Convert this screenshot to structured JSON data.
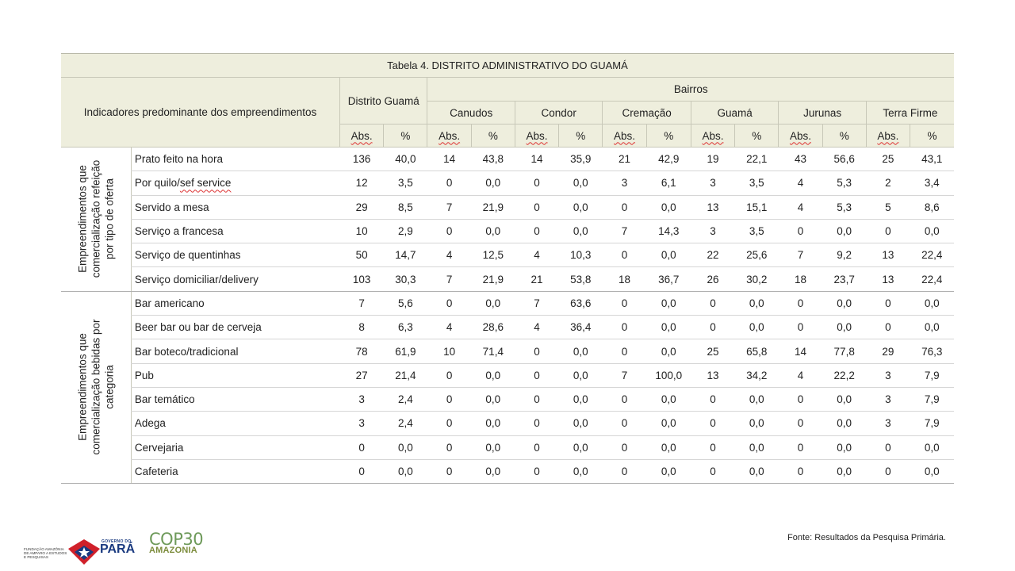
{
  "table": {
    "title": "Tabela 4. DISTRITO ADMINISTRATIVO DO GUAMÁ",
    "indicator_header": "Indicadores predominante dos empreendimentos",
    "district_header": "Distrito Guamá",
    "bairros_header": "Bairros",
    "neighborhoods": [
      "Canudos",
      "Condor",
      "Cremação",
      "Guamá",
      "Jurunas",
      "Terra Firme"
    ],
    "abs_label": "Abs.",
    "pct_label": "%",
    "groups": [
      {
        "label": "Empreendimentos que comercialização refeição por tipo de oferta",
        "rows": [
          {
            "label": "Prato feito na hora",
            "values": [
              "136",
              "40,0",
              "14",
              "43,8",
              "14",
              "35,9",
              "21",
              "42,9",
              "19",
              "22,1",
              "43",
              "56,6",
              "25",
              "43,1"
            ]
          },
          {
            "label": "Por quilo/",
            "label_b": "sef service",
            "values": [
              "12",
              "3,5",
              "0",
              "0,0",
              "0",
              "0,0",
              "3",
              "6,1",
              "3",
              "3,5",
              "4",
              "5,3",
              "2",
              "3,4"
            ]
          },
          {
            "label": "Servido a mesa",
            "values": [
              "29",
              "8,5",
              "7",
              "21,9",
              "0",
              "0,0",
              "0",
              "0,0",
              "13",
              "15,1",
              "4",
              "5,3",
              "5",
              "8,6"
            ]
          },
          {
            "label": "Serviço a francesa",
            "values": [
              "10",
              "2,9",
              "0",
              "0,0",
              "0",
              "0,0",
              "7",
              "14,3",
              "3",
              "3,5",
              "0",
              "0,0",
              "0",
              "0,0"
            ]
          },
          {
            "label": "Serviço de quentinhas",
            "values": [
              "50",
              "14,7",
              "4",
              "12,5",
              "4",
              "10,3",
              "0",
              "0,0",
              "22",
              "25,6",
              "7",
              "9,2",
              "13",
              "22,4"
            ]
          },
          {
            "label": "Serviço domiciliar/delivery",
            "values": [
              "103",
              "30,3",
              "7",
              "21,9",
              "21",
              "53,8",
              "18",
              "36,7",
              "26",
              "30,2",
              "18",
              "23,7",
              "13",
              "22,4"
            ]
          }
        ]
      },
      {
        "label": "Empreendimentos que comercialização bebidas por categoria",
        "rows": [
          {
            "label": "Bar americano",
            "values": [
              "7",
              "5,6",
              "0",
              "0,0",
              "7",
              "63,6",
              "0",
              "0,0",
              "0",
              "0,0",
              "0",
              "0,0",
              "0",
              "0,0"
            ]
          },
          {
            "label": "Beer bar ou bar de cerveja",
            "values": [
              "8",
              "6,3",
              "4",
              "28,6",
              "4",
              "36,4",
              "0",
              "0,0",
              "0",
              "0,0",
              "0",
              "0,0",
              "0",
              "0,0"
            ]
          },
          {
            "label": "Bar boteco/tradicional",
            "values": [
              "78",
              "61,9",
              "10",
              "71,4",
              "0",
              "0,0",
              "0",
              "0,0",
              "25",
              "65,8",
              "14",
              "77,8",
              "29",
              "76,3"
            ]
          },
          {
            "label": "Pub",
            "values": [
              "27",
              "21,4",
              "0",
              "0,0",
              "0",
              "0,0",
              "7",
              "100,0",
              "13",
              "34,2",
              "4",
              "22,2",
              "3",
              "7,9"
            ]
          },
          {
            "label": "Bar temático",
            "values": [
              "3",
              "2,4",
              "0",
              "0,0",
              "0",
              "0,0",
              "0",
              "0,0",
              "0",
              "0,0",
              "0",
              "0,0",
              "3",
              "7,9"
            ]
          },
          {
            "label": "Adega",
            "values": [
              "3",
              "2,4",
              "0",
              "0,0",
              "0",
              "0,0",
              "0",
              "0,0",
              "0",
              "0,0",
              "0",
              "0,0",
              "3",
              "7,9"
            ]
          },
          {
            "label": "Cervejaria",
            "values": [
              "0",
              "0,0",
              "0",
              "0,0",
              "0",
              "0,0",
              "0",
              "0,0",
              "0",
              "0,0",
              "0",
              "0,0",
              "0",
              "0,0"
            ]
          },
          {
            "label": "Cafeteria",
            "values": [
              "0",
              "0,0",
              "0",
              "0,0",
              "0",
              "0,0",
              "0",
              "0,0",
              "0",
              "0,0",
              "0",
              "0,0",
              "0",
              "0,0"
            ]
          }
        ]
      }
    ]
  },
  "source": "Fonte: Resultados da Pesquisa Primária.",
  "logos": {
    "fapespa": "FUNDAÇÃO AMAZÔNIA DE AMPARO A ESTUDOS E PESQUISAS",
    "gov_label": "GOVERNO DO",
    "gov_state": "PARÁ",
    "cop": "COP30",
    "cop_sub": "AMAZONIA"
  },
  "colors": {
    "header_bg": "#eeeedd",
    "spellcheck": "#dd3333",
    "gov_blue": "#1a3a80",
    "gov_red": "#d0202a",
    "cop_green": "#6e9a5a"
  }
}
